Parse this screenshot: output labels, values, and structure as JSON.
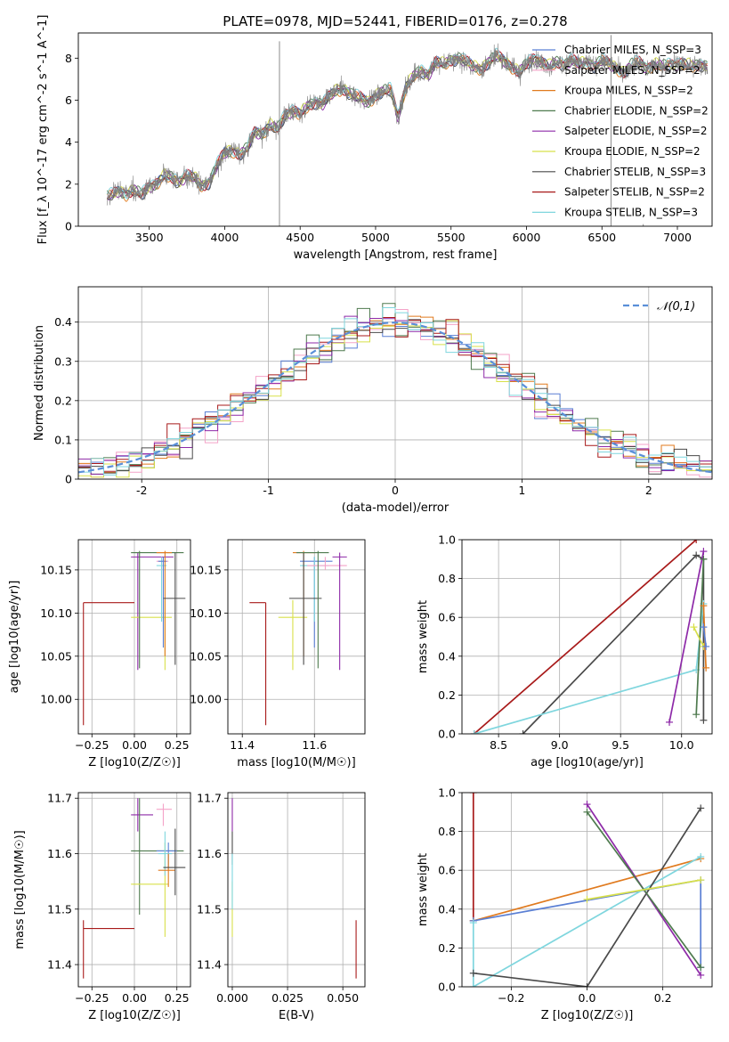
{
  "chart_data": [
    {
      "id": "spectrum",
      "type": "line",
      "title": "PLATE=0978, MJD=52441, FIBERID=0176, z=0.278",
      "xlabel": "wavelength [Angstrom, rest frame]",
      "ylabel": "Flux [f_λ 10^-17 erg cm^-2 s^-1 A^-1]",
      "xlim": [
        3030,
        7230
      ],
      "ylim": [
        0,
        9.2
      ],
      "xticks": [
        3500,
        4000,
        4500,
        5000,
        5500,
        6000,
        6500,
        7000
      ],
      "yticks": [
        0,
        2,
        4,
        6,
        8
      ],
      "legend": "top-right",
      "observed": {
        "color": "#808080",
        "x": [
          3220,
          3260,
          3300,
          3350,
          3400,
          3450,
          3500,
          3550,
          3600,
          3650,
          3700,
          3750,
          3800,
          3850,
          3900,
          3950,
          4000,
          4050,
          4100,
          4150,
          4200,
          4250,
          4300,
          4350,
          4400,
          4450,
          4500,
          4550,
          4600,
          4650,
          4700,
          4750,
          4800,
          4850,
          4900,
          4950,
          5000,
          5050,
          5100,
          5150,
          5200,
          5250,
          5300,
          5350,
          5400,
          5450,
          5500,
          5550,
          5600,
          5650,
          5700,
          5750,
          5800,
          5850,
          5900,
          5950,
          6000,
          6050,
          6100,
          6150,
          6200,
          6250,
          6300,
          6350,
          6400,
          6450,
          6500,
          6550,
          6600,
          6650,
          6700,
          6750,
          6800,
          6850,
          6900,
          6950,
          7000,
          7050,
          7100,
          7150,
          7200
        ],
        "y": [
          1.4,
          1.5,
          1.7,
          1.5,
          1.7,
          1.5,
          1.9,
          2.0,
          2.4,
          2.3,
          2.1,
          2.4,
          2.3,
          1.9,
          2.1,
          2.9,
          3.5,
          3.6,
          3.4,
          3.7,
          4.5,
          4.4,
          4.8,
          4.6,
          5.3,
          5.5,
          5.3,
          5.7,
          5.9,
          5.8,
          6.2,
          6.5,
          6.5,
          6.2,
          6.1,
          5.9,
          6.2,
          6.4,
          6.5,
          5.2,
          6.6,
          7.1,
          7.4,
          7.2,
          7.8,
          7.7,
          7.9,
          8.0,
          7.8,
          7.6,
          7.5,
          7.8,
          8.1,
          7.9,
          7.6,
          7.3,
          7.7,
          8.0,
          7.8,
          7.6,
          7.8,
          7.7,
          7.9,
          7.7,
          7.8,
          7.6,
          7.9,
          7.7,
          7.5,
          7.3,
          7.7,
          7.8,
          7.5,
          7.7,
          7.6,
          7.7,
          7.7,
          7.7,
          7.6,
          7.7,
          7.6
        ],
        "noise": 0.55,
        "spikes": [
          [
            4363,
            8.8
          ],
          [
            6774,
            0.1
          ],
          [
            6560,
            9.1
          ]
        ]
      },
      "series": [
        {
          "name": "Chabrier MILES, N_SSP=3",
          "color": "#5a7fd4",
          "offset": 0.0
        },
        {
          "name": "Salpeter MILES, N_SSP=2",
          "color": "#f4a3c8",
          "offset": 0.05
        },
        {
          "name": "Kroupa MILES, N_SSP=2",
          "color": "#e07a1e",
          "offset": -0.04
        },
        {
          "name": "Chabrier ELODIE, N_SSP=2",
          "color": "#4e7a4e",
          "offset": 0.03
        },
        {
          "name": "Salpeter ELODIE, N_SSP=2",
          "color": "#8e2aa8",
          "offset": -0.02
        },
        {
          "name": "Kroupa ELODIE, N_SSP=2",
          "color": "#d8e04a",
          "offset": 0.06
        },
        {
          "name": "Chabrier STELIB, N_SSP=3",
          "color": "#4a4a4a",
          "offset": -0.05
        },
        {
          "name": "Salpeter STELIB, N_SSP=2",
          "color": "#a81a1a",
          "offset": 0.02
        },
        {
          "name": "Kroupa STELIB, N_SSP=3",
          "color": "#7fd6de",
          "offset": 0.08
        }
      ]
    },
    {
      "id": "residuals",
      "type": "line",
      "xlabel": "(data-model)/error",
      "ylabel": "Normed distribution",
      "xlim": [
        -2.5,
        2.5
      ],
      "ylim": [
        0,
        0.49
      ],
      "xticks": [
        -2,
        -1,
        0,
        1,
        2
      ],
      "yticks": [
        0.0,
        0.1,
        0.2,
        0.3,
        0.4
      ],
      "grid": true,
      "legend": "top-right",
      "reference": {
        "name": "𝒩(0,1)",
        "color": "#5a8fd8",
        "style": "dashed"
      },
      "bin_width": 0.1,
      "jitter": 0.035
    },
    {
      "id": "age-vs-Z",
      "type": "scatter",
      "xlabel": "Z [log10(Z/Z☉)]",
      "ylabel": "age  [log10(age/yr)]",
      "xlim": [
        -0.33,
        0.33
      ],
      "ylim": [
        9.96,
        10.185
      ],
      "xticks": [
        -0.25,
        0.0,
        0.25
      ],
      "xticklabels": [
        "−0.25",
        "0.00",
        "0.25"
      ],
      "yticks": [
        10.0,
        10.05,
        10.1,
        10.15
      ],
      "yticklabels": [
        "10.00",
        "10.05",
        "10.10",
        "10.15"
      ],
      "grid": true,
      "points": [
        {
          "color": "#a81a1a",
          "x": -0.3,
          "y": 10.112,
          "xlo": -0.3,
          "xhi": 0.0,
          "ylo": 9.97,
          "yhi": 10.112
        },
        {
          "color": "#8e2aa8",
          "x": 0.02,
          "y": 10.165,
          "xlo": -0.02,
          "xhi": 0.23,
          "ylo": 10.034,
          "yhi": 10.17
        },
        {
          "color": "#d8e04a",
          "x": 0.18,
          "y": 10.095,
          "xlo": -0.02,
          "xhi": 0.22,
          "ylo": 10.034,
          "yhi": 10.115
        },
        {
          "color": "#4e7a4e",
          "x": 0.03,
          "y": 10.17,
          "xlo": -0.02,
          "xhi": 0.29,
          "ylo": 10.036,
          "yhi": 10.172
        },
        {
          "color": "#f4a3c8",
          "x": 0.16,
          "y": 10.16,
          "xlo": 0.13,
          "xhi": 0.2,
          "ylo": 10.15,
          "yhi": 10.165
        },
        {
          "color": "#7fd6de",
          "x": 0.16,
          "y": 10.155,
          "xlo": 0.13,
          "xhi": 0.19,
          "ylo": 10.09,
          "yhi": 10.165
        },
        {
          "color": "#5a7fd4",
          "x": 0.17,
          "y": 10.16,
          "xlo": 0.14,
          "xhi": 0.19,
          "ylo": 10.06,
          "yhi": 10.165
        },
        {
          "color": "#e07a1e",
          "x": 0.18,
          "y": 10.17,
          "xlo": 0.13,
          "xhi": 0.22,
          "ylo": 10.05,
          "yhi": 10.172
        },
        {
          "color": "#4a4a4a",
          "x": 0.24,
          "y": 10.117,
          "xlo": 0.17,
          "xhi": 0.3,
          "ylo": 10.04,
          "yhi": 10.17
        }
      ]
    },
    {
      "id": "age-vs-mass",
      "type": "scatter",
      "xlabel": "mass [log10(M/M☉)]",
      "ylabel": "",
      "xlim": [
        11.36,
        11.74
      ],
      "ylim": [
        9.96,
        10.185
      ],
      "xticks": [
        11.4,
        11.6
      ],
      "xticklabels": [
        "11.4",
        "11.6"
      ],
      "yticks": [
        10.0,
        10.05,
        10.1,
        10.15
      ],
      "yticklabels": [
        "10.00",
        "10.05",
        "10.10",
        "10.15"
      ],
      "grid": true,
      "points": [
        {
          "color": "#a81a1a",
          "x": 11.465,
          "y": 10.112,
          "xlo": 11.42,
          "xhi": 11.465,
          "ylo": 9.97,
          "yhi": 10.112
        },
        {
          "color": "#d8e04a",
          "x": 11.54,
          "y": 10.095,
          "xlo": 11.5,
          "xhi": 11.58,
          "ylo": 10.034,
          "yhi": 10.115
        },
        {
          "color": "#e07a1e",
          "x": 11.57,
          "y": 10.17,
          "xlo": 11.54,
          "xhi": 11.6,
          "ylo": 10.05,
          "yhi": 10.172
        },
        {
          "color": "#5a7fd4",
          "x": 11.6,
          "y": 10.16,
          "xlo": 11.56,
          "xhi": 11.65,
          "ylo": 10.06,
          "yhi": 10.165
        },
        {
          "color": "#7fd6de",
          "x": 11.6,
          "y": 10.155,
          "xlo": 11.56,
          "xhi": 11.64,
          "ylo": 10.09,
          "yhi": 10.165
        },
        {
          "color": "#f4a3c8",
          "x": 11.63,
          "y": 10.155,
          "xlo": 11.58,
          "xhi": 11.69,
          "ylo": 10.15,
          "yhi": 10.165
        },
        {
          "color": "#4a4a4a",
          "x": 11.57,
          "y": 10.117,
          "xlo": 11.53,
          "xhi": 11.62,
          "ylo": 10.04,
          "yhi": 10.17
        },
        {
          "color": "#4e7a4e",
          "x": 11.61,
          "y": 10.17,
          "xlo": 11.55,
          "xhi": 11.64,
          "ylo": 10.036,
          "yhi": 10.172
        },
        {
          "color": "#8e2aa8",
          "x": 11.67,
          "y": 10.165,
          "xlo": 11.65,
          "xhi": 11.69,
          "ylo": 10.034,
          "yhi": 10.17
        }
      ]
    },
    {
      "id": "mass-weight-vs-age",
      "type": "line",
      "xlabel": "age  [log10(age/yr)]",
      "ylabel": "mass weight",
      "xlim": [
        8.2,
        10.25
      ],
      "ylim": [
        0,
        1.0
      ],
      "xticks": [
        8.5,
        9.0,
        9.5,
        10.0
      ],
      "xticklabels": [
        "8.5",
        "9.0",
        "9.5",
        "10.0"
      ],
      "yticks": [
        0.0,
        0.2,
        0.4,
        0.6,
        0.8,
        1.0
      ],
      "yticklabels": [
        "0.0",
        "0.2",
        "0.4",
        "0.6",
        "0.8",
        "1.0"
      ],
      "grid": true,
      "series": [
        {
          "color": "#a81a1a",
          "x": [
            8.3,
            10.12
          ],
          "y": [
            0.0,
            1.0
          ]
        },
        {
          "color": "#4a4a4a",
          "x": [
            8.7,
            10.12,
            10.18,
            10.18
          ],
          "y": [
            0.0,
            0.92,
            0.9,
            0.07
          ]
        },
        {
          "color": "#7fd6de",
          "x": [
            8.3,
            10.12,
            10.18
          ],
          "y": [
            0.0,
            0.33,
            0.67
          ]
        },
        {
          "color": "#8e2aa8",
          "x": [
            9.9,
            10.18
          ],
          "y": [
            0.06,
            0.94
          ]
        },
        {
          "color": "#4e7a4e",
          "x": [
            10.12,
            10.18
          ],
          "y": [
            0.1,
            0.9
          ]
        },
        {
          "color": "#d8e04a",
          "x": [
            10.1,
            10.18
          ],
          "y": [
            0.55,
            0.45
          ]
        },
        {
          "color": "#e07a1e",
          "x": [
            10.18,
            10.2
          ],
          "y": [
            0.66,
            0.34
          ]
        },
        {
          "color": "#5a7fd4",
          "x": [
            10.18,
            10.2
          ],
          "y": [
            0.55,
            0.45
          ]
        }
      ]
    },
    {
      "id": "mass-vs-Z",
      "type": "scatter",
      "xlabel": "Z [log10(Z/Z☉)]",
      "ylabel": "mass [log10(M/M☉)]",
      "xlim": [
        -0.33,
        0.33
      ],
      "ylim": [
        11.36,
        11.71
      ],
      "xticks": [
        -0.25,
        0.0,
        0.25
      ],
      "xticklabels": [
        "−0.25",
        "0.00",
        "0.25"
      ],
      "yticks": [
        11.4,
        11.5,
        11.6,
        11.7
      ],
      "yticklabels": [
        "11.4",
        "11.5",
        "11.6",
        "11.7"
      ],
      "grid": true,
      "points": [
        {
          "color": "#a81a1a",
          "x": -0.3,
          "y": 11.465,
          "xlo": -0.3,
          "xhi": 0.0,
          "ylo": 11.375,
          "yhi": 11.48
        },
        {
          "color": "#8e2aa8",
          "x": 0.02,
          "y": 11.67,
          "xlo": -0.02,
          "xhi": 0.11,
          "ylo": 11.64,
          "yhi": 11.7
        },
        {
          "color": "#f4a3c8",
          "x": 0.17,
          "y": 11.68,
          "xlo": 0.13,
          "xhi": 0.22,
          "ylo": 11.65,
          "yhi": 11.69
        },
        {
          "color": "#4e7a4e",
          "x": 0.03,
          "y": 11.605,
          "xlo": -0.02,
          "xhi": 0.29,
          "ylo": 11.49,
          "yhi": 11.7
        },
        {
          "color": "#5a7fd4",
          "x": 0.2,
          "y": 11.605,
          "xlo": 0.13,
          "xhi": 0.25,
          "ylo": 11.575,
          "yhi": 11.62
        },
        {
          "color": "#d8e04a",
          "x": 0.18,
          "y": 11.545,
          "xlo": -0.02,
          "xhi": 0.2,
          "ylo": 11.45,
          "yhi": 11.62
        },
        {
          "color": "#7fd6de",
          "x": 0.18,
          "y": 11.6,
          "xlo": 0.14,
          "xhi": 0.22,
          "ylo": 11.56,
          "yhi": 11.64
        },
        {
          "color": "#e07a1e",
          "x": 0.2,
          "y": 11.57,
          "xlo": 0.14,
          "xhi": 0.24,
          "ylo": 11.54,
          "yhi": 11.6
        },
        {
          "color": "#4a4a4a",
          "x": 0.24,
          "y": 11.575,
          "xlo": 0.17,
          "xhi": 0.3,
          "ylo": 11.525,
          "yhi": 11.645
        }
      ]
    },
    {
      "id": "mass-vs-ebv",
      "type": "scatter",
      "xlabel": "E(B-V)",
      "ylabel": "",
      "xlim": [
        -0.002,
        0.06
      ],
      "ylim": [
        11.36,
        11.71
      ],
      "xticks": [
        0.0,
        0.025,
        0.05
      ],
      "xticklabels": [
        "0.000",
        "0.025",
        "0.050"
      ],
      "yticks": [
        11.4,
        11.5,
        11.6,
        11.7
      ],
      "yticklabels": [
        "11.4",
        "11.5",
        "11.6",
        "11.7"
      ],
      "grid": true,
      "points": [
        {
          "color": "#8e2aa8",
          "x": 0.0,
          "y": 11.67,
          "xlo": 0.0,
          "xhi": 0.0,
          "ylo": 11.64,
          "yhi": 11.7
        },
        {
          "color": "#4a4a4a",
          "x": 0.0,
          "y": 11.61,
          "xlo": 0.0,
          "xhi": 0.0,
          "ylo": 11.58,
          "yhi": 11.64
        },
        {
          "color": "#d8e04a",
          "x": 0.0,
          "y": 11.5,
          "xlo": 0.0,
          "xhi": 0.0,
          "ylo": 11.45,
          "yhi": 11.55
        },
        {
          "color": "#7fd6de",
          "x": 0.0,
          "y": 11.55,
          "xlo": 0.0,
          "xhi": 0.0,
          "ylo": 11.5,
          "yhi": 11.6
        },
        {
          "color": "#a81a1a",
          "x": 0.056,
          "y": 11.43,
          "xlo": 0.056,
          "xhi": 0.056,
          "ylo": 11.375,
          "yhi": 11.48
        }
      ]
    },
    {
      "id": "mass-weight-vs-Z",
      "type": "line",
      "xlabel": "Z [log10(Z/Z☉)]",
      "ylabel": "mass weight",
      "xlim": [
        -0.33,
        0.33
      ],
      "ylim": [
        0,
        1.0
      ],
      "xticks": [
        -0.2,
        0.0,
        0.2
      ],
      "xticklabels": [
        "−0.2",
        "0.0",
        "0.2"
      ],
      "yticks": [
        0.0,
        0.2,
        0.4,
        0.6,
        0.8,
        1.0
      ],
      "yticklabels": [
        "0.0",
        "0.2",
        "0.4",
        "0.6",
        "0.8",
        "1.0"
      ],
      "grid": true,
      "series": [
        {
          "color": "#a81a1a",
          "x": [
            -0.3,
            -0.3
          ],
          "y": [
            0.34,
            1.0
          ]
        },
        {
          "color": "#e07a1e",
          "x": [
            -0.3,
            0.3
          ],
          "y": [
            0.34,
            0.66
          ]
        },
        {
          "color": "#5a7fd4",
          "x": [
            -0.3,
            0.3,
            0.3
          ],
          "y": [
            0.34,
            0.55,
            0.1
          ]
        },
        {
          "color": "#7fd6de",
          "x": [
            -0.3,
            -0.3,
            0.3
          ],
          "y": [
            0.33,
            0.0,
            0.67
          ]
        },
        {
          "color": "#4a4a4a",
          "x": [
            -0.3,
            0.0,
            0.3
          ],
          "y": [
            0.07,
            0.0,
            0.92
          ]
        },
        {
          "color": "#8e2aa8",
          "x": [
            0.0,
            0.3
          ],
          "y": [
            0.94,
            0.06
          ]
        },
        {
          "color": "#4e7a4e",
          "x": [
            0.0,
            0.3
          ],
          "y": [
            0.9,
            0.1
          ]
        },
        {
          "color": "#d8e04a",
          "x": [
            0.0,
            0.3
          ],
          "y": [
            0.45,
            0.55
          ]
        }
      ]
    }
  ]
}
